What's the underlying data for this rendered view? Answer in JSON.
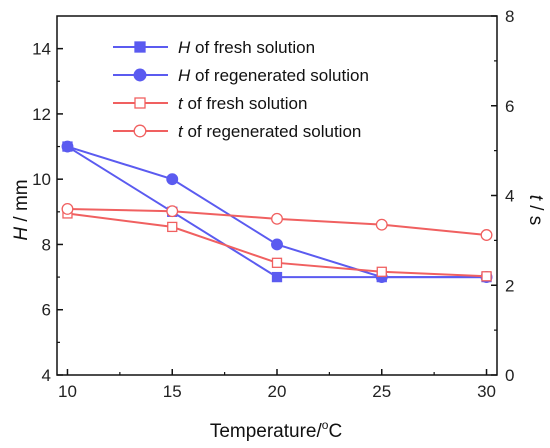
{
  "chart_data": {
    "type": "line",
    "x": [
      10,
      15,
      20,
      25,
      30
    ],
    "xlim": [
      9.5,
      30.5
    ],
    "xticks": [
      10,
      15,
      20,
      25,
      30
    ],
    "xlabel": {
      "prefix": "Temperature/",
      "sup": "o",
      "suffix": "C"
    },
    "ylabel_left": {
      "italic": "H",
      "rest": " / mm"
    },
    "ylim_left": [
      4,
      15
    ],
    "yticks_left": [
      4,
      6,
      8,
      10,
      12,
      14
    ],
    "ylabel_right": {
      "italic": "t",
      "rest": " / s"
    },
    "ylim_right": [
      0,
      8
    ],
    "yticks_right": [
      0,
      2,
      4,
      6,
      8
    ],
    "legend_position": "top-center",
    "series": [
      {
        "italic": "H",
        "name": " of fresh solution",
        "axis": "left",
        "color": "#5b5bf0",
        "marker": "square",
        "filled": true,
        "values": [
          11.0,
          9.0,
          7.0,
          7.0,
          7.0
        ]
      },
      {
        "italic": "H",
        "name": " of regenerated solution",
        "axis": "left",
        "color": "#5b5bf0",
        "marker": "circle",
        "filled": true,
        "values": [
          11.0,
          10.0,
          8.0,
          7.0,
          7.0
        ]
      },
      {
        "italic": "t",
        "name": " of fresh solution",
        "axis": "right",
        "color": "#f06060",
        "marker": "square",
        "filled": false,
        "values": [
          3.6,
          3.3,
          2.5,
          2.3,
          2.2
        ]
      },
      {
        "italic": "t",
        "name": " of regenerated solution",
        "axis": "right",
        "color": "#f06060",
        "marker": "circle",
        "filled": false,
        "values": [
          3.7,
          3.65,
          3.48,
          3.35,
          3.12
        ]
      }
    ]
  }
}
